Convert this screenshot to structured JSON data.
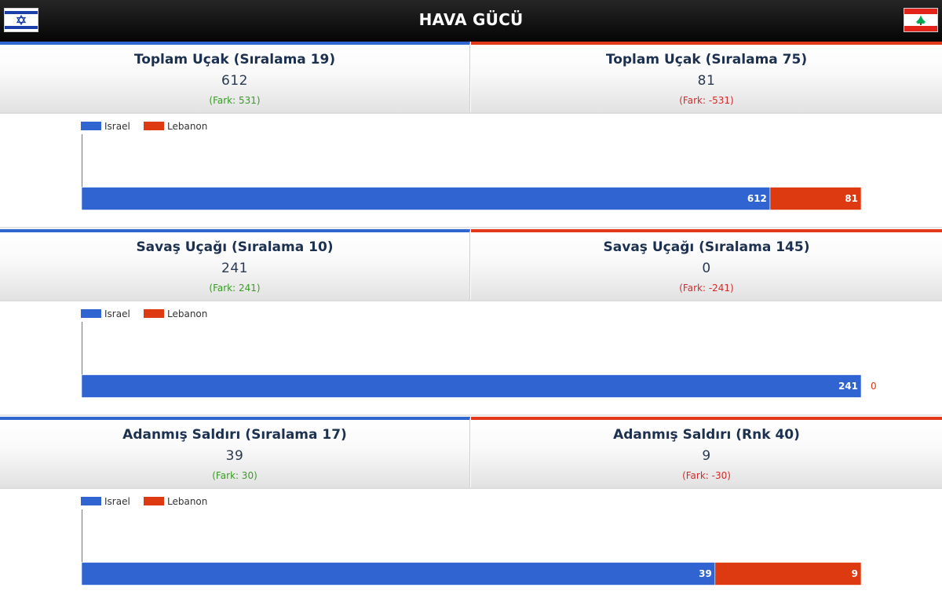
{
  "header": {
    "title": "HAVA GÜCÜ",
    "left_flag": "israel-flag-icon",
    "right_flag": "lebanon-flag-icon"
  },
  "colors": {
    "israel": "#3064d0",
    "lebanon": "#dd3a12",
    "positive": "#3a9a28",
    "negative": "#d22a2a",
    "header_bg": "#111111"
  },
  "sections": [
    {
      "left": {
        "label": "Toplam Uçak (Sıralama 19)",
        "value": "612",
        "diff": "(Fark: 531)"
      },
      "right": {
        "label": "Toplam Uçak (Sıralama 75)",
        "value": "81",
        "diff": "(Fark: -531)"
      }
    },
    {
      "left": {
        "label": "Savaş Uçağı (Sıralama 10)",
        "value": "241",
        "diff": "(Fark: 241)"
      },
      "right": {
        "label": "Savaş Uçağı (Sıralama 145)",
        "value": "0",
        "diff": "(Fark: -241)"
      }
    },
    {
      "left": {
        "label": "Adanmış Saldırı (Sıralama 17)",
        "value": "39",
        "diff": "(Fark: 30)"
      },
      "right": {
        "label": "Adanmış Saldırı (Rnk 40)",
        "value": "9",
        "diff": "(Fark: -30)"
      }
    }
  ],
  "chart_data": [
    {
      "type": "bar",
      "stacked": true,
      "orientation": "horizontal",
      "legend": "top-left",
      "series": [
        {
          "name": "Israel",
          "values": [
            612
          ]
        },
        {
          "name": "Lebanon",
          "values": [
            81
          ]
        }
      ]
    },
    {
      "type": "bar",
      "stacked": true,
      "orientation": "horizontal",
      "legend": "top-left",
      "series": [
        {
          "name": "Israel",
          "values": [
            241
          ]
        },
        {
          "name": "Lebanon",
          "values": [
            0
          ]
        }
      ]
    },
    {
      "type": "bar",
      "stacked": true,
      "orientation": "horizontal",
      "legend": "top-left",
      "series": [
        {
          "name": "Israel",
          "values": [
            39
          ]
        },
        {
          "name": "Lebanon",
          "values": [
            9
          ]
        }
      ]
    }
  ]
}
